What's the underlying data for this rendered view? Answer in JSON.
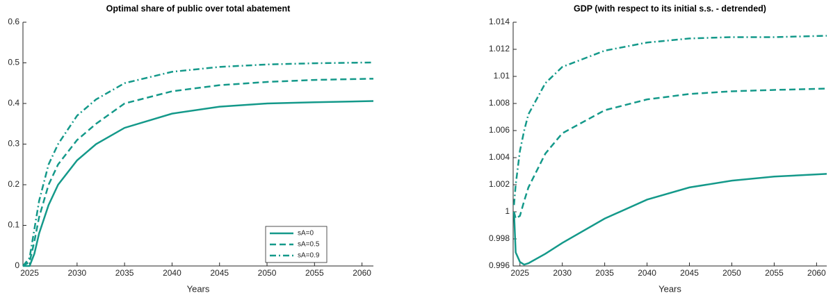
{
  "chart_data": [
    {
      "type": "line",
      "title": "Optimal share of public over total abatement",
      "x_label": "Years",
      "x": [
        2024.3,
        2025,
        2025.5,
        2026,
        2027,
        2028,
        2030,
        2032,
        2035,
        2040,
        2045,
        2050,
        2055,
        2061.2
      ],
      "series": [
        {
          "name": "sA=0",
          "color": "#14998a",
          "dash": "solid",
          "values": [
            0,
            0,
            0.03,
            0.08,
            0.15,
            0.2,
            0.26,
            0.3,
            0.34,
            0.375,
            0.392,
            0.4,
            0.403,
            0.406
          ]
        },
        {
          "name": "sA=0.5",
          "color": "#14998a",
          "dash": "dashed",
          "values": [
            0,
            0.01,
            0.06,
            0.12,
            0.2,
            0.25,
            0.31,
            0.35,
            0.4,
            0.43,
            0.445,
            0.453,
            0.458,
            0.461
          ]
        },
        {
          "name": "sA=0.9",
          "color": "#14998a",
          "dash": "dashdot",
          "values": [
            0,
            0.02,
            0.09,
            0.16,
            0.25,
            0.3,
            0.37,
            0.41,
            0.45,
            0.478,
            0.49,
            0.496,
            0.499,
            0.501
          ]
        }
      ],
      "xlim": [
        2024.3,
        2061.2
      ],
      "xticks": [
        2025,
        2030,
        2035,
        2040,
        2045,
        2050,
        2055,
        2060
      ],
      "ylim": [
        0,
        0.6
      ],
      "yticks": [
        0,
        0.1,
        0.2,
        0.3,
        0.4,
        0.5,
        0.6
      ],
      "legend": "lower-right"
    },
    {
      "type": "line",
      "title": "GDP (with respect to its initial s.s. - detrended)",
      "x_label": "Years",
      "x": [
        2024.3,
        2024.5,
        2025,
        2025.5,
        2026,
        2028,
        2030,
        2035,
        2040,
        2045,
        2050,
        2055,
        2061.2
      ],
      "series": [
        {
          "color": "#14998a",
          "dash": "solid",
          "values": [
            1.0,
            0.997,
            0.9963,
            0.9961,
            0.9962,
            0.9969,
            0.9977,
            0.9995,
            1.0009,
            1.0018,
            1.0023,
            1.0026,
            1.0028
          ]
        },
        {
          "color": "#14998a",
          "dash": "dashed",
          "values": [
            1.0,
            0.9995,
            0.9997,
            1.0008,
            1.0018,
            1.0043,
            1.0058,
            1.0075,
            1.0083,
            1.0087,
            1.0089,
            1.009,
            1.0091
          ]
        },
        {
          "color": "#14998a",
          "dash": "dashdot",
          "values": [
            1.0005,
            1.002,
            1.0045,
            1.006,
            1.0072,
            1.0095,
            1.0107,
            1.0119,
            1.0125,
            1.0128,
            1.0129,
            1.0129,
            1.013
          ]
        }
      ],
      "xlim": [
        2024.2,
        2061.2
      ],
      "xticks": [
        2025,
        2030,
        2035,
        2040,
        2045,
        2050,
        2055,
        2060
      ],
      "ylim": [
        0.996,
        1.014
      ],
      "yticks": [
        0.996,
        0.998,
        1,
        1.002,
        1.004,
        1.006,
        1.008,
        1.01,
        1.012,
        1.014
      ]
    }
  ]
}
